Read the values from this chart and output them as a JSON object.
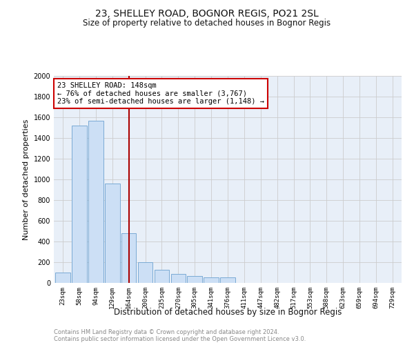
{
  "title": "23, SHELLEY ROAD, BOGNOR REGIS, PO21 2SL",
  "subtitle": "Size of property relative to detached houses in Bognor Regis",
  "xlabel": "Distribution of detached houses by size in Bognor Regis",
  "ylabel": "Number of detached properties",
  "footnote1": "Contains HM Land Registry data © Crown copyright and database right 2024.",
  "footnote2": "Contains public sector information licensed under the Open Government Licence v3.0.",
  "annotation_title": "23 SHELLEY ROAD: 148sqm",
  "annotation_line1": "← 76% of detached houses are smaller (3,767)",
  "annotation_line2": "23% of semi-detached houses are larger (1,148) →",
  "bar_categories": [
    "23sqm",
    "58sqm",
    "94sqm",
    "129sqm",
    "164sqm",
    "200sqm",
    "235sqm",
    "270sqm",
    "305sqm",
    "341sqm",
    "376sqm",
    "411sqm",
    "447sqm",
    "482sqm",
    "517sqm",
    "553sqm",
    "588sqm",
    "623sqm",
    "659sqm",
    "694sqm",
    "729sqm"
  ],
  "bar_heights": [
    100,
    1520,
    1570,
    960,
    480,
    200,
    130,
    85,
    65,
    55,
    55,
    0,
    0,
    0,
    0,
    0,
    0,
    0,
    0,
    0,
    0
  ],
  "bar_color": "#ccdff5",
  "bar_edge_color": "#7aaad4",
  "vline_color": "#aa0000",
  "vline_x": 4.0,
  "annotation_box_color": "#cc0000",
  "ylim": [
    0,
    2000
  ],
  "yticks": [
    0,
    200,
    400,
    600,
    800,
    1000,
    1200,
    1400,
    1600,
    1800,
    2000
  ],
  "grid_color": "#cccccc",
  "plot_bg_color": "#e8eff8",
  "figwidth": 6.0,
  "figheight": 5.0,
  "dpi": 100
}
